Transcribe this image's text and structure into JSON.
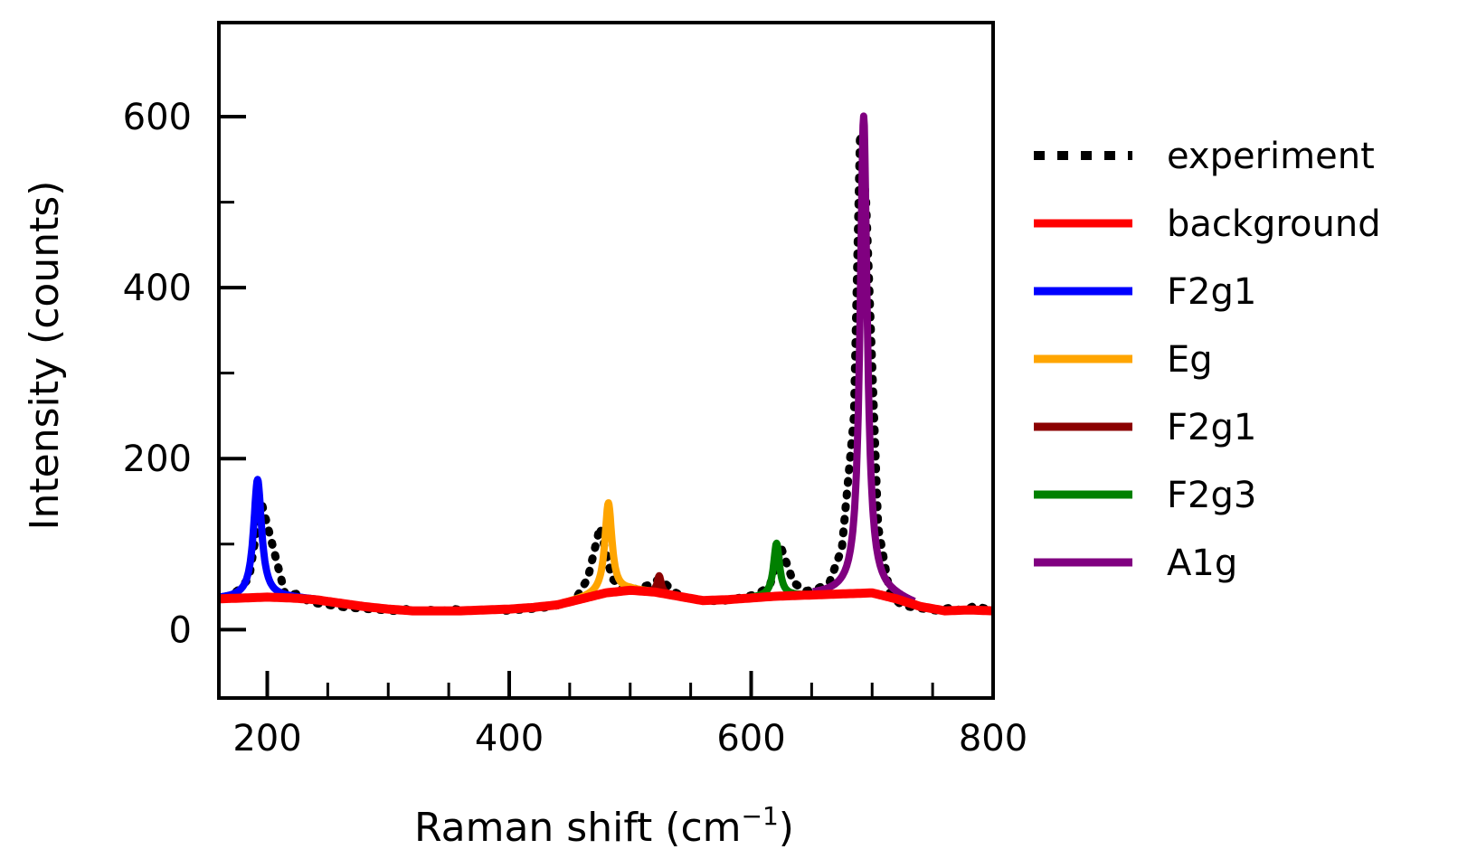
{
  "chart_data": {
    "type": "line",
    "xlabel": "Raman shift (cm",
    "xlabel_sup": "−1",
    "xlabel_close": ")",
    "ylabel": "Intensity (counts)",
    "xlim": [
      160,
      800
    ],
    "ylim": [
      -80,
      710
    ],
    "x_ticks": [
      200,
      400,
      600,
      800
    ],
    "y_ticks": [
      0,
      200,
      400,
      600
    ],
    "x_minor_ticks": [
      250,
      300,
      350,
      450,
      500,
      550,
      650,
      700,
      750
    ],
    "y_minor_ticks": [
      100,
      300,
      500
    ],
    "grid": false,
    "legend_position": "outside-right",
    "experiment": {
      "name": "experiment",
      "color": "#000000",
      "style": "dotted",
      "x": [
        165,
        175,
        185,
        195,
        205,
        215,
        225,
        235,
        245,
        255,
        265,
        275,
        285,
        295,
        305,
        315,
        325,
        335,
        345,
        355,
        365,
        375,
        385,
        395,
        405,
        415,
        425,
        435,
        445,
        455,
        465,
        475,
        485,
        495,
        505,
        515,
        525,
        535,
        545,
        555,
        565,
        575,
        585,
        595,
        605,
        615,
        625,
        635,
        645,
        655,
        665,
        675,
        685,
        690,
        695,
        705,
        715,
        725,
        735,
        745,
        755,
        765,
        775,
        785,
        795,
        800
      ],
      "y": [
        38,
        45,
        60,
        150,
        95,
        40,
        42,
        32,
        30,
        28,
        26,
        25,
        24,
        23,
        22,
        24,
        22,
        23,
        22,
        24,
        22,
        23,
        24,
        22,
        23,
        24,
        25,
        27,
        30,
        36,
        60,
        120,
        60,
        45,
        48,
        52,
        60,
        45,
        38,
        35,
        34,
        33,
        36,
        38,
        42,
        50,
        95,
        55,
        45,
        48,
        56,
        95,
        250,
        580,
        500,
        120,
        40,
        28,
        26,
        24,
        22,
        26,
        22,
        28,
        24,
        22
      ]
    },
    "background": {
      "name": "background",
      "color": "#ff0000",
      "x": [
        160,
        180,
        200,
        220,
        240,
        260,
        280,
        300,
        320,
        340,
        360,
        380,
        400,
        420,
        440,
        460,
        480,
        500,
        520,
        540,
        560,
        580,
        600,
        620,
        640,
        660,
        680,
        700,
        720,
        740,
        760,
        780,
        800
      ],
      "y": [
        36,
        37,
        38,
        37,
        35,
        31,
        27,
        24,
        22,
        22,
        22,
        23,
        24,
        26,
        29,
        36,
        43,
        46,
        44,
        39,
        34,
        35,
        37,
        39,
        40,
        41,
        42,
        43,
        36,
        27,
        22,
        23,
        22
      ]
    },
    "peaks": [
      {
        "name": "F2g1",
        "color": "#0000ff",
        "center": 192,
        "height": 138,
        "width": 8
      },
      {
        "name": "Eg",
        "color": "#ffa500",
        "center": 482,
        "height": 105,
        "width": 7
      },
      {
        "name": "F2g1",
        "color": "#8b0000",
        "center": 524,
        "height": 20,
        "width": 4
      },
      {
        "name": "F2g3",
        "color": "#008000",
        "center": 621,
        "height": 62,
        "width": 6
      },
      {
        "name": "A1g",
        "color": "#800080",
        "center": 693,
        "height": 558,
        "width": 7
      }
    ],
    "legend": [
      {
        "label": "experiment",
        "color": "#000000",
        "style": "dotted"
      },
      {
        "label": "background",
        "color": "#ff0000",
        "style": "solid"
      },
      {
        "label": "F2g1",
        "color": "#0000ff",
        "style": "solid"
      },
      {
        "label": "Eg",
        "color": "#ffa500",
        "style": "solid"
      },
      {
        "label": "F2g1",
        "color": "#8b0000",
        "style": "solid"
      },
      {
        "label": "F2g3",
        "color": "#008000",
        "style": "solid"
      },
      {
        "label": "A1g",
        "color": "#800080",
        "style": "solid"
      }
    ]
  }
}
